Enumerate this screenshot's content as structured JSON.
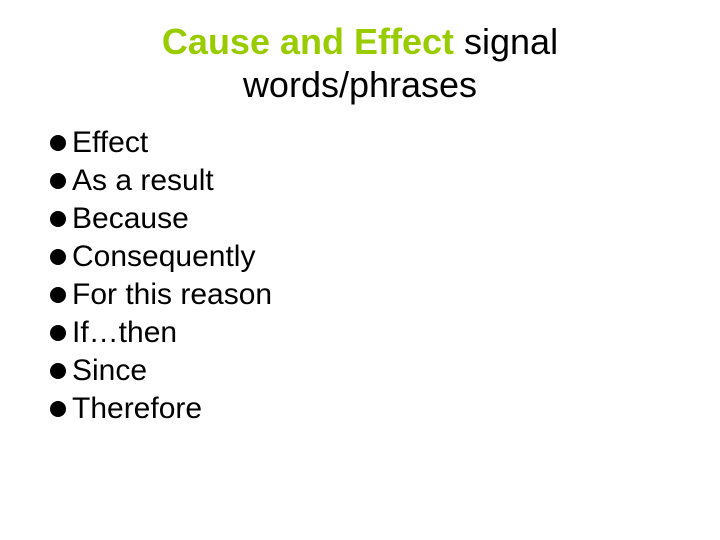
{
  "title": {
    "highlight": "Cause and Effect",
    "rest_line1": " signal",
    "rest_line2": "words/phrases"
  },
  "bullets": [
    "Effect",
    "As a result",
    "Because",
    "Consequently",
    "For this reason",
    "If…then",
    "Since",
    "Therefore"
  ],
  "colors": {
    "highlight": "#99cc00",
    "text": "#000000",
    "background": "#ffffff",
    "bullet": "#000000"
  },
  "typography": {
    "title_fontsize": 36,
    "bullet_fontsize": 30,
    "font_family": "Arial"
  }
}
